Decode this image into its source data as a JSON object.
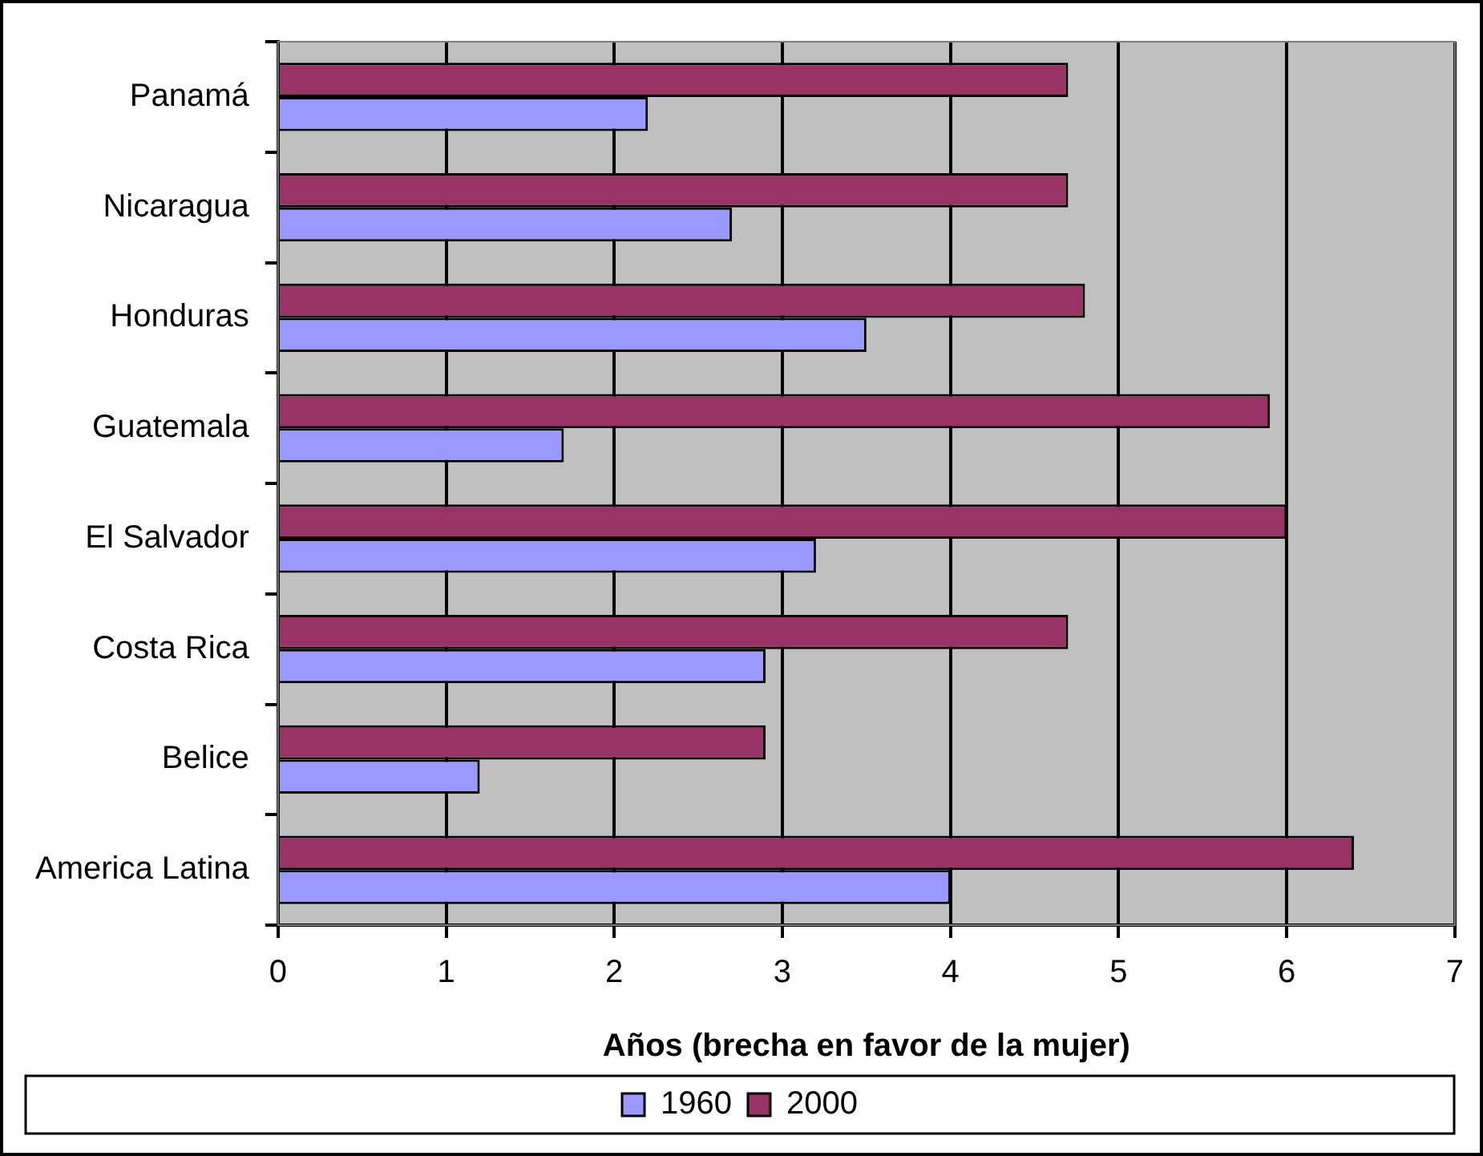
{
  "chart_data": {
    "type": "bar",
    "orientation": "horizontal",
    "xlabel": "Años (brecha en favor de la mujer)",
    "categories": [
      "Panamá",
      "Nicaragua",
      "Honduras",
      "Guatemala",
      "El Salvador",
      "Costa Rica",
      "Belice",
      "America Latina"
    ],
    "series": [
      {
        "name": "1960",
        "color": "#9999ff",
        "values": [
          2.2,
          2.7,
          3.5,
          1.7,
          3.2,
          2.9,
          1.2,
          4.0
        ]
      },
      {
        "name": "2000",
        "color": "#993366",
        "values": [
          4.7,
          4.7,
          4.8,
          5.9,
          6.0,
          4.7,
          2.9,
          6.4
        ]
      }
    ],
    "xlim": [
      0,
      7
    ],
    "xticks": [
      0,
      1,
      2,
      3,
      4,
      5,
      6,
      7
    ],
    "grid": "x",
    "legend": "bottom"
  }
}
